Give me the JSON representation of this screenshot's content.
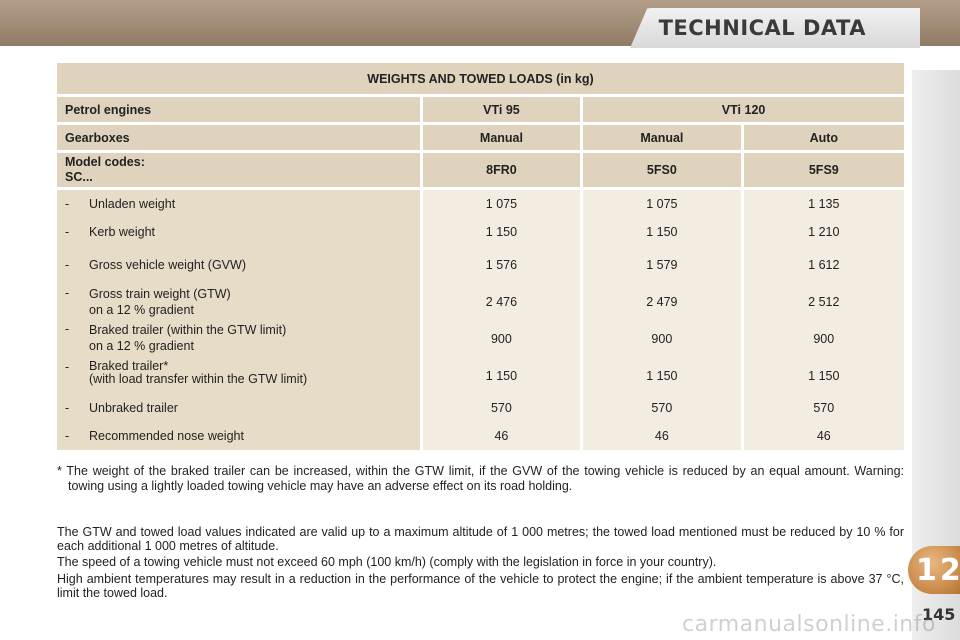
{
  "header": {
    "title": "TECHNICAL DATA"
  },
  "table": {
    "title": "WEIGHTS AND TOWED LOADS (in kg)",
    "engines_label": "Petrol engines",
    "engines": [
      "VTi 95",
      "VTi 120"
    ],
    "gearboxes_label": "Gearboxes",
    "gearboxes": [
      "Manual",
      "Manual",
      "Auto"
    ],
    "model_codes_label_1": "Model codes:",
    "model_codes_label_2": "SC...",
    "model_codes": [
      "8FR0",
      "5FS0",
      "5FS9"
    ],
    "rows": [
      {
        "dash": "-",
        "label": "Unladen weight",
        "sub": "",
        "values": [
          "1 075",
          "1 075",
          "1 135"
        ]
      },
      {
        "dash": "-",
        "label": "Kerb weight",
        "sub": "",
        "values": [
          "1 150",
          "1 150",
          "1 210"
        ]
      },
      {
        "dash": "-",
        "label": "Gross vehicle weight (GVW)",
        "sub": "",
        "values": [
          "1 576",
          "1 579",
          "1 612"
        ]
      },
      {
        "dash": "-",
        "label": "Gross train weight (GTW)",
        "sub": "on a 12 % gradient",
        "values": [
          "2 476",
          "2 479",
          "2 512"
        ]
      },
      {
        "dash": "-",
        "label": "Braked trailer (within the GTW limit)",
        "sub": "on a 12 % gradient",
        "values": [
          "900",
          "900",
          "900"
        ]
      },
      {
        "dash": "-",
        "label": "Braked trailer*",
        "sub": "(with load transfer within the GTW limit)",
        "values": [
          "1 150",
          "1 150",
          "1 150"
        ]
      },
      {
        "dash": "-",
        "label": "Unbraked trailer",
        "sub": "",
        "values": [
          "570",
          "570",
          "570"
        ]
      },
      {
        "dash": "-",
        "label": "Recommended nose weight",
        "sub": "",
        "values": [
          "46",
          "46",
          "46"
        ]
      }
    ]
  },
  "footnote": "* The weight of the braked trailer can be increased, within the GTW limit, if the GVW of the towing vehicle is reduced by an equal amount. Warning: towing using a lightly loaded towing vehicle may have an adverse effect on its road holding.",
  "paragraphs": [
    "The GTW and towed load values indicated are valid up to a maximum altitude of 1 000 metres; the towed load mentioned must be reduced by 10 % for each additional 1 000 metres of altitude.",
    "The speed of a towing vehicle must not exceed 60 mph (100 km/h) (comply with the legislation in force in your country).",
    "High ambient temperatures may result in a reduction in the performance of the vehicle to protect the engine; if the ambient temperature is above 37 °C, limit the towed load."
  ],
  "chapter_number": "12",
  "page_number": "145",
  "watermark": "carmanualsonline.info"
}
